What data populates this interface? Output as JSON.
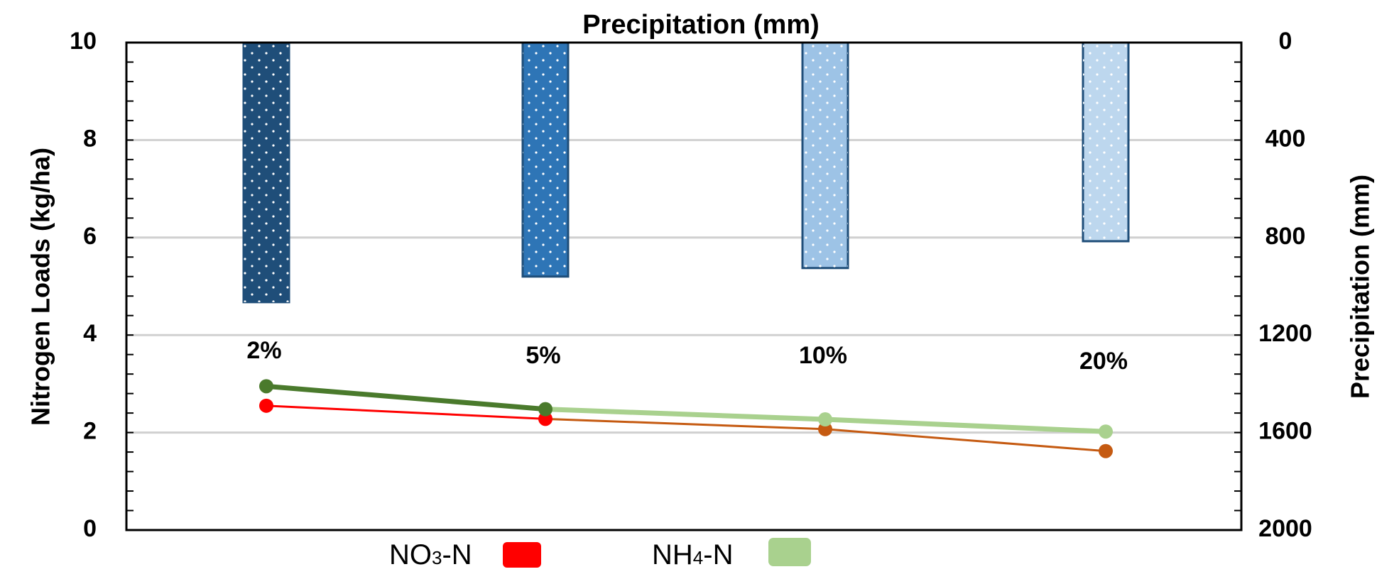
{
  "chart_data": {
    "type": "line+bar",
    "title": "Precipitation (mm)",
    "categories": [
      "2%",
      "5%",
      "10%",
      "20%"
    ],
    "left_axis": {
      "label": "Nitrogen Loads (kg/ha)",
      "ylim": [
        0,
        10
      ],
      "ticks": [
        "0",
        "2",
        "4",
        "6",
        "8",
        "10"
      ]
    },
    "right_axis": {
      "label": "Precipitation (mm)",
      "ylim": [
        0,
        2000
      ],
      "inverted": true,
      "ticks": [
        "0",
        "400",
        "800",
        "1200",
        "1600",
        "2000"
      ]
    },
    "grid": true,
    "precipitation_bars": {
      "name": "Precipitation (mm)",
      "values": [
        1065,
        960,
        925,
        815
      ],
      "colors": [
        "#1f4e79",
        "#2e75b6",
        "#9dc3e6",
        "#bdd7ee"
      ]
    },
    "series": [
      {
        "name": "NO3-N",
        "values": [
          2.55,
          2.28,
          2.07,
          1.62
        ],
        "point_colors": [
          "#ff0000",
          "#ff0000",
          "#c55a11",
          "#c55a11"
        ]
      },
      {
        "name": "NH4-N",
        "values": [
          2.95,
          2.48,
          2.27,
          2.02
        ],
        "point_colors": [
          "#4a7a2c",
          "#4a7a2c",
          "#a9d18e",
          "#a9d18e"
        ]
      }
    ],
    "legend": {
      "position": "bottom",
      "entries": [
        {
          "base": "NO",
          "sub": "3",
          "suffix": "-N",
          "color": "#ff0000"
        },
        {
          "base": "NH",
          "sub": "4",
          "suffix": "-N",
          "color": "#a9d18e"
        }
      ]
    }
  }
}
